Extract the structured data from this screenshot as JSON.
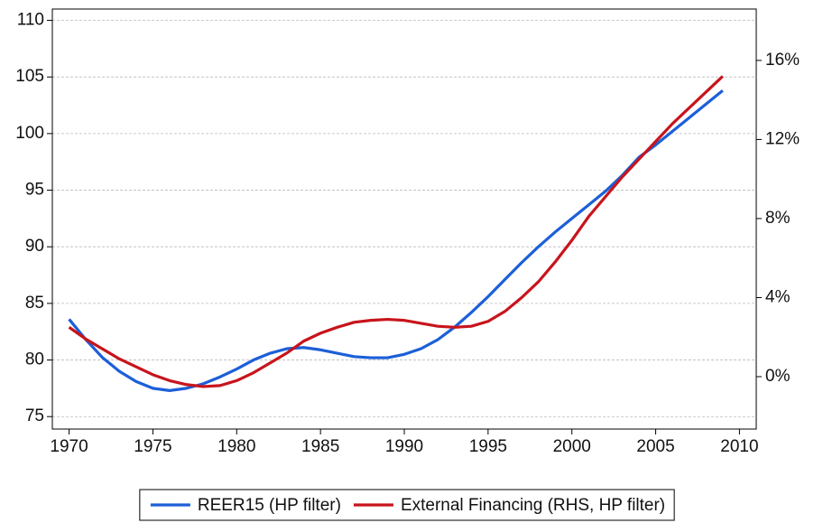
{
  "chart_data": {
    "type": "line",
    "x": [
      1970,
      1971,
      1972,
      1973,
      1974,
      1975,
      1976,
      1977,
      1978,
      1979,
      1980,
      1981,
      1982,
      1983,
      1984,
      1985,
      1986,
      1987,
      1988,
      1989,
      1990,
      1991,
      1992,
      1993,
      1994,
      1995,
      1996,
      1997,
      1998,
      1999,
      2000,
      2001,
      2002,
      2003,
      2004,
      2005,
      2006,
      2007,
      2008,
      2009
    ],
    "series": [
      {
        "name": "REER15 (HP filter)",
        "color": "#1c5fd8",
        "values": [
          83.6,
          81.8,
          80.2,
          79.0,
          78.1,
          77.5,
          77.3,
          77.5,
          77.9,
          78.5,
          79.2,
          80.0,
          80.6,
          81.0,
          81.1,
          80.9,
          80.6,
          80.3,
          80.2,
          80.2,
          80.5,
          81.0,
          81.8,
          82.9,
          84.2,
          85.6,
          87.1,
          88.6,
          90.0,
          91.3,
          92.5,
          93.7,
          94.9,
          96.3,
          97.9,
          99.0,
          100.2,
          101.4,
          102.6,
          103.8
        ]
      },
      {
        "name": "External Financing (RHS, HP filter)",
        "color": "#c8141c",
        "axis": "y2",
        "values": [
          2.5,
          1.9,
          1.4,
          0.9,
          0.5,
          0.1,
          -0.2,
          -0.4,
          -0.5,
          -0.45,
          -0.2,
          0.2,
          0.7,
          1.2,
          1.8,
          2.2,
          2.5,
          2.75,
          2.85,
          2.9,
          2.85,
          2.7,
          2.55,
          2.5,
          2.55,
          2.8,
          3.3,
          4.0,
          4.8,
          5.8,
          6.9,
          8.1,
          9.1,
          10.1,
          11.0,
          11.9,
          12.8,
          13.6,
          14.4,
          15.2
        ]
      }
    ],
    "xlim": [
      1969,
      2011
    ],
    "xticks": [
      1970,
      1975,
      1980,
      1985,
      1990,
      1995,
      2000,
      2005,
      2010
    ],
    "ylim": [
      73.9,
      111.0
    ],
    "yticks": [
      75,
      80,
      85,
      90,
      95,
      100,
      105,
      110
    ],
    "y2lim": [
      -2.65,
      18.6
    ],
    "y2ticks": [
      {
        "value": 0,
        "label": "0%"
      },
      {
        "value": 4,
        "label": "4%"
      },
      {
        "value": 8,
        "label": "8%"
      },
      {
        "value": 12,
        "label": "12%"
      },
      {
        "value": 16,
        "label": "16%"
      }
    ],
    "grid": true,
    "legend": "bottom"
  }
}
